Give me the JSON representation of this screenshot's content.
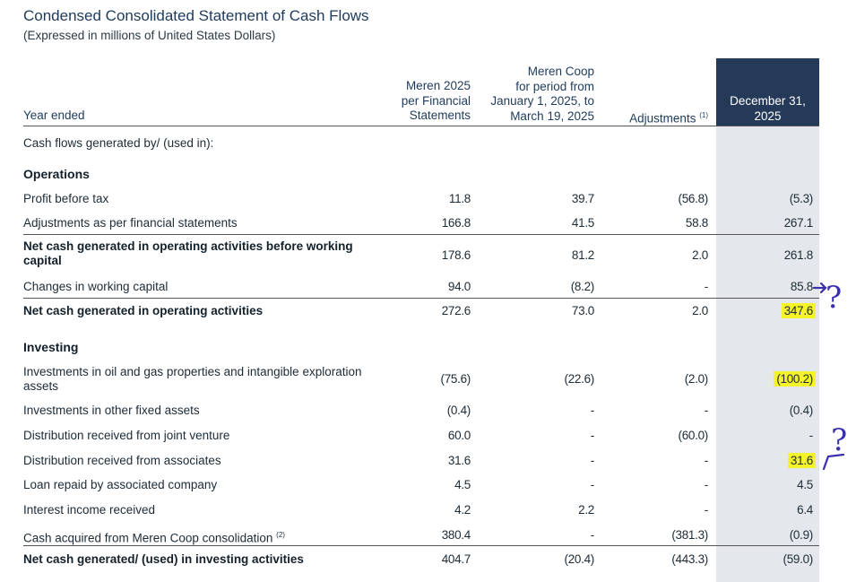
{
  "title": "Condensed Consolidated Statement of Cash Flows",
  "subtitle": "(Expressed in millions of United States Dollars)",
  "headers": {
    "year": "Year ended",
    "col1": "Meren 2025\nper Financial\nStatements",
    "col2": "Meren Coop\nfor period from\nJanuary 1, 2025, to\nMarch 19, 2025",
    "col3": "Adjustments",
    "col3_note": "(1)",
    "col4": "December 31,\n2025"
  },
  "intro": "Cash flows generated by/ (used in):",
  "sections": {
    "operations": "Operations",
    "investing": "Investing"
  },
  "rows": {
    "profit": {
      "label": "Profit before tax",
      "v": [
        "11.8",
        "39.7",
        "(56.8)",
        "(5.3)"
      ]
    },
    "adj": {
      "label": "Adjustments as per financial statements",
      "v": [
        "166.8",
        "41.5",
        "58.8",
        "267.1"
      ]
    },
    "netbefore": {
      "label": "Net cash generated in operating activities before working capital",
      "v": [
        "178.6",
        "81.2",
        "2.0",
        "261.8"
      ]
    },
    "wc": {
      "label": "Changes in working capital",
      "v": [
        "94.0",
        "(8.2)",
        "-",
        "85.8"
      ]
    },
    "netop": {
      "label": "Net cash generated in operating activities",
      "v": [
        "272.6",
        "73.0",
        "2.0",
        "347.6"
      ]
    },
    "oilgas": {
      "label": "Investments in oil and gas properties and intangible exploration assets",
      "v": [
        "(75.6)",
        "(22.6)",
        "(2.0)",
        "(100.2)"
      ]
    },
    "otherfixed": {
      "label": "Investments in other fixed assets",
      "v": [
        "(0.4)",
        "-",
        "-",
        "(0.4)"
      ]
    },
    "jv": {
      "label": "Distribution received from joint venture",
      "v": [
        "60.0",
        "-",
        "(60.0)",
        "-"
      ]
    },
    "assoc": {
      "label": "Distribution received from associates",
      "v": [
        "31.6",
        "-",
        "-",
        "31.6"
      ]
    },
    "loan": {
      "label": "Loan repaid by associated company",
      "v": [
        "4.5",
        "-",
        "-",
        "4.5"
      ]
    },
    "interest": {
      "label": "Interest income received",
      "v": [
        "4.2",
        "2.2",
        "-",
        "6.4"
      ]
    },
    "cashacq": {
      "label": "Cash acquired from Meren Coop consolidation",
      "note": "(2)",
      "v": [
        "380.4",
        "-",
        "(381.3)",
        "(0.9)"
      ]
    },
    "netinv": {
      "label": "Net cash generated/ (used) in investing activities",
      "v": [
        "404.7",
        "(20.4)",
        "(443.3)",
        "(59.0)"
      ]
    }
  },
  "annotations": {
    "question_mark": "?",
    "color": "#3a2fb0",
    "highlight_color": "#f5f32a"
  }
}
